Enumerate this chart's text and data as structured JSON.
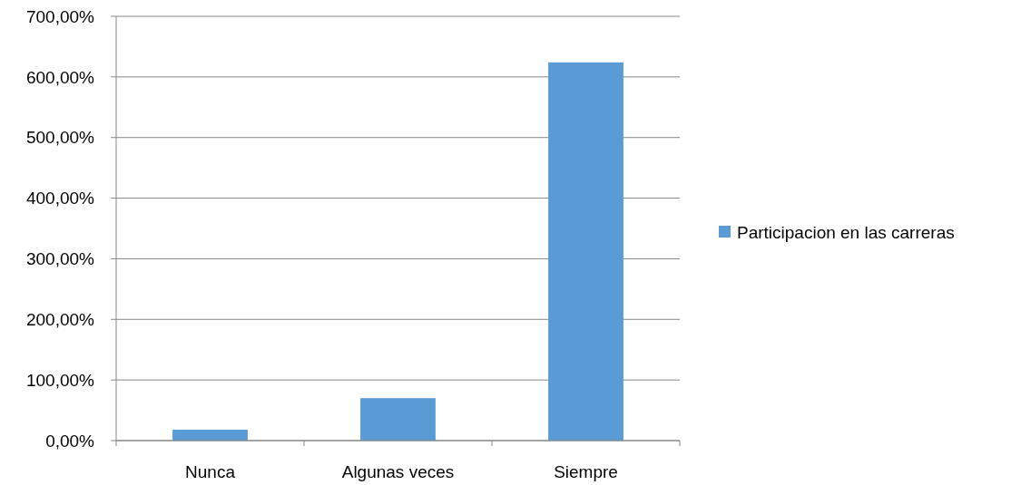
{
  "chart_data": {
    "type": "bar",
    "categories": [
      "Nunca",
      "Algunas veces",
      "Siempre"
    ],
    "series": [
      {
        "name": "Participacion en las carreras",
        "color": "#5b9bd5",
        "values": [
          18,
          70,
          624
        ]
      }
    ],
    "ylim": [
      0,
      700
    ],
    "yticks": [
      {
        "value": 0,
        "label": "0,00%"
      },
      {
        "value": 100,
        "label": "100,00%"
      },
      {
        "value": 200,
        "label": "200,00%"
      },
      {
        "value": 300,
        "label": "300,00%"
      },
      {
        "value": 400,
        "label": "400,00%"
      },
      {
        "value": 500,
        "label": "500,00%"
      },
      {
        "value": 600,
        "label": "600,00%"
      },
      {
        "value": 700,
        "label": "700,00%"
      }
    ],
    "grid": "y",
    "legend": "right"
  }
}
